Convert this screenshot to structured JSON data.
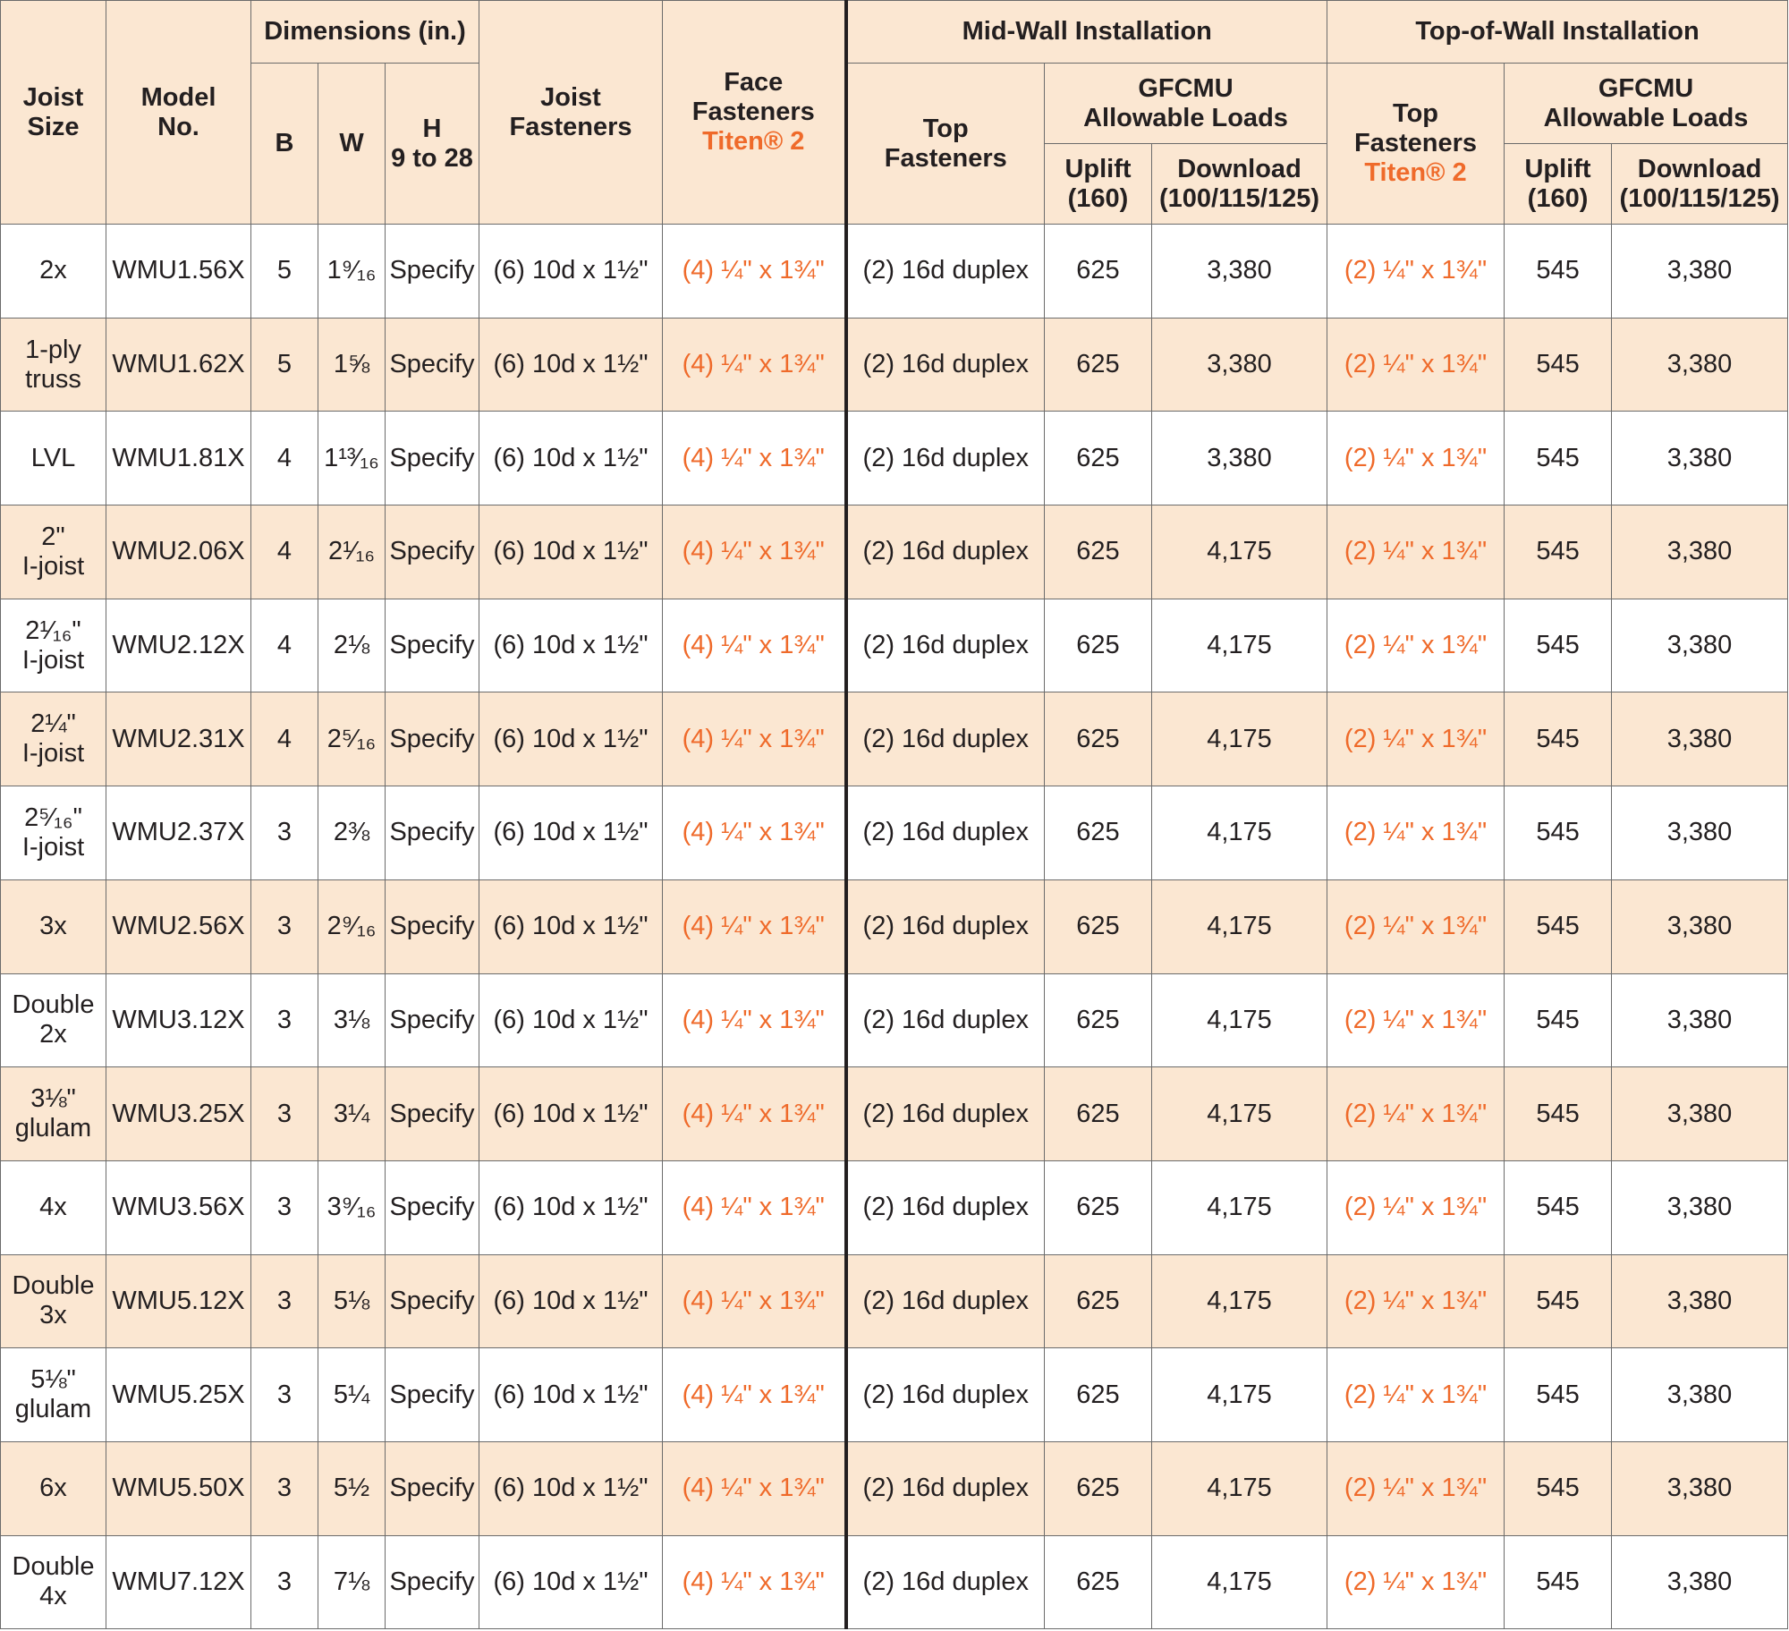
{
  "header": {
    "joist_size": [
      "Joist",
      "Size"
    ],
    "model_no": [
      "Model",
      "No."
    ],
    "dimensions": "Dimensions (in.)",
    "b": "B",
    "w": "W",
    "h": [
      "H",
      "9 to 28"
    ],
    "joist_fasteners": [
      "Joist",
      "Fasteners"
    ],
    "face_fasteners": [
      "Face",
      "Fasteners",
      "Titen® 2"
    ],
    "mid_wall": "Mid-Wall Installation",
    "top_of_wall": "Top-of-Wall Installation",
    "top_fasteners": [
      "Top",
      "Fasteners"
    ],
    "top_fasteners_titen": [
      "Top",
      "Fasteners",
      "Titen® 2"
    ],
    "gfcmu": [
      "GFCMU",
      "Allowable Loads"
    ],
    "uplift": [
      "Uplift",
      "(160)"
    ],
    "download": [
      "Download",
      "(100/115/125)"
    ]
  },
  "rows": [
    {
      "joist": [
        "2x"
      ],
      "model": "WMU1.56X",
      "b": "5",
      "w": "1⁹⁄₁₆",
      "h": "Specify",
      "joist_fast": "(6) 10d x 1½\"",
      "face_fast": "(4) ¼\" x 1¾\"",
      "mid_top_fast": "(2) 16d duplex",
      "mid_uplift": "625",
      "mid_download": "3,380",
      "tow_top_fast": "(2) ¼\" x 1¾\"",
      "tow_uplift": "545",
      "tow_download": "3,380"
    },
    {
      "joist": [
        "1-ply",
        "truss"
      ],
      "model": "WMU1.62X",
      "b": "5",
      "w": "1⅝",
      "h": "Specify",
      "joist_fast": "(6) 10d x 1½\"",
      "face_fast": "(4) ¼\" x 1¾\"",
      "mid_top_fast": "(2) 16d duplex",
      "mid_uplift": "625",
      "mid_download": "3,380",
      "tow_top_fast": "(2) ¼\" x 1¾\"",
      "tow_uplift": "545",
      "tow_download": "3,380"
    },
    {
      "joist": [
        "LVL"
      ],
      "model": "WMU1.81X",
      "b": "4",
      "w": "1¹³⁄₁₆",
      "h": "Specify",
      "joist_fast": "(6) 10d x 1½\"",
      "face_fast": "(4) ¼\" x 1¾\"",
      "mid_top_fast": "(2) 16d duplex",
      "mid_uplift": "625",
      "mid_download": "3,380",
      "tow_top_fast": "(2) ¼\" x 1¾\"",
      "tow_uplift": "545",
      "tow_download": "3,380"
    },
    {
      "joist": [
        "2\"",
        "I-joist"
      ],
      "model": "WMU2.06X",
      "b": "4",
      "w": "2¹⁄₁₆",
      "h": "Specify",
      "joist_fast": "(6) 10d x 1½\"",
      "face_fast": "(4) ¼\" x 1¾\"",
      "mid_top_fast": "(2) 16d duplex",
      "mid_uplift": "625",
      "mid_download": "4,175",
      "tow_top_fast": "(2) ¼\" x 1¾\"",
      "tow_uplift": "545",
      "tow_download": "3,380"
    },
    {
      "joist": [
        "2¹⁄₁₆\"",
        "I-joist"
      ],
      "model": "WMU2.12X",
      "b": "4",
      "w": "2⅛",
      "h": "Specify",
      "joist_fast": "(6) 10d x 1½\"",
      "face_fast": "(4) ¼\" x 1¾\"",
      "mid_top_fast": "(2) 16d duplex",
      "mid_uplift": "625",
      "mid_download": "4,175",
      "tow_top_fast": "(2) ¼\" x 1¾\"",
      "tow_uplift": "545",
      "tow_download": "3,380"
    },
    {
      "joist": [
        "2¼\"",
        "I-joist"
      ],
      "model": "WMU2.31X",
      "b": "4",
      "w": "2⁵⁄₁₆",
      "h": "Specify",
      "joist_fast": "(6) 10d x 1½\"",
      "face_fast": "(4) ¼\" x 1¾\"",
      "mid_top_fast": "(2) 16d duplex",
      "mid_uplift": "625",
      "mid_download": "4,175",
      "tow_top_fast": "(2) ¼\" x 1¾\"",
      "tow_uplift": "545",
      "tow_download": "3,380"
    },
    {
      "joist": [
        "2⁵⁄₁₆\"",
        "I-joist"
      ],
      "model": "WMU2.37X",
      "b": "3",
      "w": "2⅜",
      "h": "Specify",
      "joist_fast": "(6) 10d x 1½\"",
      "face_fast": "(4) ¼\" x 1¾\"",
      "mid_top_fast": "(2) 16d duplex",
      "mid_uplift": "625",
      "mid_download": "4,175",
      "tow_top_fast": "(2) ¼\" x 1¾\"",
      "tow_uplift": "545",
      "tow_download": "3,380"
    },
    {
      "joist": [
        "3x"
      ],
      "model": "WMU2.56X",
      "b": "3",
      "w": "2⁹⁄₁₆",
      "h": "Specify",
      "joist_fast": "(6) 10d x 1½\"",
      "face_fast": "(4) ¼\" x 1¾\"",
      "mid_top_fast": "(2) 16d duplex",
      "mid_uplift": "625",
      "mid_download": "4,175",
      "tow_top_fast": "(2) ¼\" x 1¾\"",
      "tow_uplift": "545",
      "tow_download": "3,380"
    },
    {
      "joist": [
        "Double",
        "2x"
      ],
      "model": "WMU3.12X",
      "b": "3",
      "w": "3⅛",
      "h": "Specify",
      "joist_fast": "(6) 10d x 1½\"",
      "face_fast": "(4) ¼\" x 1¾\"",
      "mid_top_fast": "(2) 16d duplex",
      "mid_uplift": "625",
      "mid_download": "4,175",
      "tow_top_fast": "(2) ¼\" x 1¾\"",
      "tow_uplift": "545",
      "tow_download": "3,380"
    },
    {
      "joist": [
        "3⅛\"",
        "glulam"
      ],
      "model": "WMU3.25X",
      "b": "3",
      "w": "3¼",
      "h": "Specify",
      "joist_fast": "(6) 10d x 1½\"",
      "face_fast": "(4) ¼\" x 1¾\"",
      "mid_top_fast": "(2) 16d duplex",
      "mid_uplift": "625",
      "mid_download": "4,175",
      "tow_top_fast": "(2) ¼\" x 1¾\"",
      "tow_uplift": "545",
      "tow_download": "3,380"
    },
    {
      "joist": [
        "4x"
      ],
      "model": "WMU3.56X",
      "b": "3",
      "w": "3⁹⁄₁₆",
      "h": "Specify",
      "joist_fast": "(6) 10d x 1½\"",
      "face_fast": "(4) ¼\" x 1¾\"",
      "mid_top_fast": "(2) 16d duplex",
      "mid_uplift": "625",
      "mid_download": "4,175",
      "tow_top_fast": "(2) ¼\" x 1¾\"",
      "tow_uplift": "545",
      "tow_download": "3,380"
    },
    {
      "joist": [
        "Double",
        "3x"
      ],
      "model": "WMU5.12X",
      "b": "3",
      "w": "5⅛",
      "h": "Specify",
      "joist_fast": "(6) 10d x 1½\"",
      "face_fast": "(4) ¼\" x 1¾\"",
      "mid_top_fast": "(2) 16d duplex",
      "mid_uplift": "625",
      "mid_download": "4,175",
      "tow_top_fast": "(2) ¼\" x 1¾\"",
      "tow_uplift": "545",
      "tow_download": "3,380"
    },
    {
      "joist": [
        "5⅛\"",
        "glulam"
      ],
      "model": "WMU5.25X",
      "b": "3",
      "w": "5¼",
      "h": "Specify",
      "joist_fast": "(6) 10d x 1½\"",
      "face_fast": "(4) ¼\" x 1¾\"",
      "mid_top_fast": "(2) 16d duplex",
      "mid_uplift": "625",
      "mid_download": "4,175",
      "tow_top_fast": "(2) ¼\" x 1¾\"",
      "tow_uplift": "545",
      "tow_download": "3,380"
    },
    {
      "joist": [
        "6x"
      ],
      "model": "WMU5.50X",
      "b": "3",
      "w": "5½",
      "h": "Specify",
      "joist_fast": "(6) 10d x 1½\"",
      "face_fast": "(4) ¼\" x 1¾\"",
      "mid_top_fast": "(2) 16d duplex",
      "mid_uplift": "625",
      "mid_download": "4,175",
      "tow_top_fast": "(2) ¼\" x 1¾\"",
      "tow_uplift": "545",
      "tow_download": "3,380"
    },
    {
      "joist": [
        "Double",
        "4x"
      ],
      "model": "WMU7.12X",
      "b": "3",
      "w": "7⅛",
      "h": "Specify",
      "joist_fast": "(6) 10d x 1½\"",
      "face_fast": "(4) ¼\" x 1¾\"",
      "mid_top_fast": "(2) 16d duplex",
      "mid_uplift": "625",
      "mid_download": "4,175",
      "tow_top_fast": "(2) ¼\" x 1¾\"",
      "tow_uplift": "545",
      "tow_download": "3,380"
    }
  ],
  "colors": {
    "header_bg": "#fbe7d2",
    "stripe_bg": "#fbe7d2",
    "accent": "#ef6a2a",
    "text": "#231f20",
    "grid": "#6b6b6b"
  }
}
